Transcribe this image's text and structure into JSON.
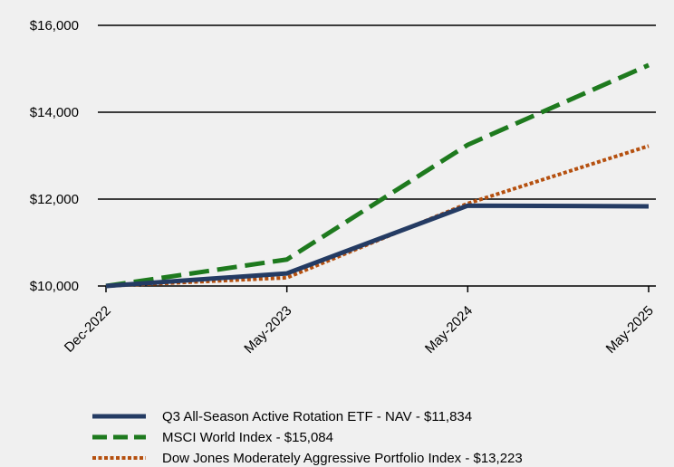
{
  "chart_data": {
    "type": "line",
    "title": "",
    "xlabel": "",
    "ylabel": "",
    "categories": [
      "Dec-2022",
      "May-2023",
      "May-2024",
      "May-2025"
    ],
    "ylim": [
      10000,
      16000
    ],
    "yticks": [
      10000,
      12000,
      14000,
      16000
    ],
    "ytick_labels": [
      "$10,000",
      "$12,000",
      "$14,000",
      "$16,000"
    ],
    "grid": "horizontal",
    "legend_position": "bottom",
    "series": [
      {
        "name": "Q3 All-Season Active Rotation ETF - NAV - $11,834",
        "values": [
          10000,
          10290,
          11850,
          11834
        ],
        "color": "#243b63",
        "style": "solid"
      },
      {
        "name": "MSCI World Index - $15,084",
        "values": [
          10000,
          10610,
          13250,
          15084
        ],
        "color": "#1e7a1e",
        "style": "dashed"
      },
      {
        "name": "Dow Jones Moderately Aggressive Portfolio Index - $13,223",
        "values": [
          10000,
          10190,
          11900,
          13223
        ],
        "color": "#b5500f",
        "style": "dotted"
      }
    ]
  }
}
